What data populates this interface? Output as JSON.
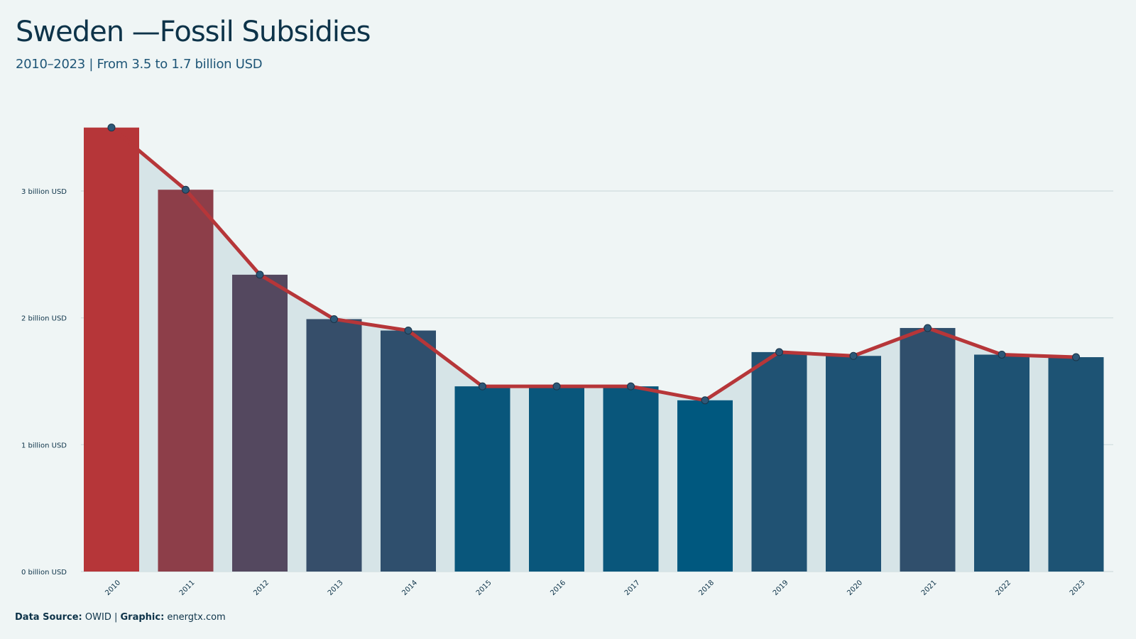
{
  "header": {
    "title": "Sweden —Fossil Subsidies",
    "subtitle": "2010–2023 | From 3.5 to 1.7 billion USD"
  },
  "footer": {
    "source_label": "Data Source:",
    "source_value": "OWID",
    "separator": " | ",
    "graphic_label": "Graphic:",
    "graphic_value": "energtx.com"
  },
  "colors": {
    "background": "#eff5f5",
    "area_fill": "#d6e4e7",
    "line": "#b63639",
    "marker": "#2d5878",
    "gridline": "#cfdcde",
    "bar_high": "#b63639",
    "bar_low": "#00587f"
  },
  "chart_data": {
    "type": "bar",
    "title": "Sweden —Fossil Subsidies",
    "subtitle": "2010–2023 | From 3.5 to 1.7 billion USD",
    "xlabel": "",
    "ylabel": "",
    "unit": "billion USD",
    "categories": [
      "2010",
      "2011",
      "2012",
      "2013",
      "2014",
      "2015",
      "2016",
      "2017",
      "2018",
      "2019",
      "2020",
      "2021",
      "2022",
      "2023"
    ],
    "values": [
      3.5,
      3.01,
      2.34,
      1.99,
      1.9,
      1.46,
      1.46,
      1.46,
      1.35,
      1.73,
      1.7,
      1.92,
      1.71,
      1.69
    ],
    "ylim": [
      0,
      3.6
    ],
    "yticks": [
      0,
      1,
      2,
      3
    ],
    "ytick_labels": [
      "0 billion USD",
      "1 billion USD",
      "2 billion USD",
      "3 billion USD"
    ],
    "overlay": "line with markers and shaded area",
    "grid": true,
    "legend": "none"
  }
}
